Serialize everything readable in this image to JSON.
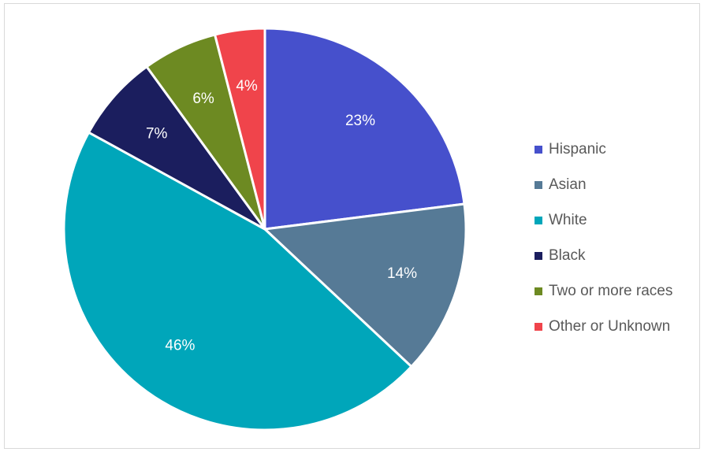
{
  "chart_data": {
    "type": "pie",
    "title": "",
    "categories": [
      "Hispanic",
      "Asian",
      "White",
      "Black",
      "Two or more races",
      "Other or Unknown"
    ],
    "values": [
      23,
      14,
      46,
      7,
      6,
      4
    ],
    "labels": [
      "23%",
      "14%",
      "46%",
      "7%",
      "6%",
      "4%"
    ],
    "colors": [
      "#4650CC",
      "#567A96",
      "#00A6BA",
      "#1B1E5E",
      "#6D8A22",
      "#F0444B"
    ],
    "label_colors": [
      "#ffffff",
      "#ffffff",
      "#ffffff",
      "#ffffff",
      "#ffffff",
      "#ffffff"
    ],
    "start_angle": "12 o'clock",
    "direction": "clockwise",
    "legend": "right"
  }
}
